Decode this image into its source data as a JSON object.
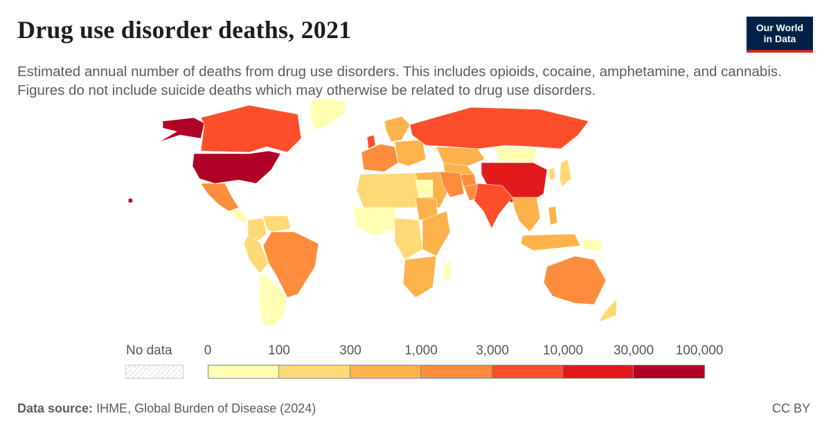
{
  "header": {
    "title": "Drug use disorder deaths, 2021",
    "subtitle": "Estimated annual number of deaths from drug use disorders. This includes opioids, cocaine, amphetamine, and cannabis. Figures do not include suicide deaths which may otherwise be related to drug use disorders."
  },
  "logo": {
    "line1": "Our World",
    "line2": "in Data",
    "bg_color": "#002147",
    "accent_color": "#ce261e"
  },
  "legend": {
    "no_data_label": "No data",
    "ticks": [
      "0",
      "100",
      "300",
      "1,000",
      "3,000",
      "10,000",
      "30,000",
      "100,000"
    ],
    "colors": [
      "#ffffb2",
      "#fed976",
      "#feb24c",
      "#fd8d3c",
      "#fc4e2a",
      "#e31a1c",
      "#b10026"
    ]
  },
  "footer": {
    "source_label": "Data source:",
    "source_text": "IHME, Global Burden of Disease (2024)",
    "license": "CC BY"
  },
  "map_data": {
    "year": "2021",
    "regions": [
      {
        "name": "United States",
        "bin": 6
      },
      {
        "name": "Alaska",
        "bin": 6
      },
      {
        "name": "Canada",
        "bin": 4
      },
      {
        "name": "Greenland",
        "bin": 0
      },
      {
        "name": "Mexico",
        "bin": 3
      },
      {
        "name": "Central America",
        "bin": 0
      },
      {
        "name": "Brazil",
        "bin": 3
      },
      {
        "name": "Colombia",
        "bin": 1
      },
      {
        "name": "Venezuela",
        "bin": 1
      },
      {
        "name": "Peru",
        "bin": 1
      },
      {
        "name": "Argentina",
        "bin": 0
      },
      {
        "name": "Chile",
        "bin": 0
      },
      {
        "name": "United Kingdom",
        "bin": 4
      },
      {
        "name": "Scandinavia",
        "bin": 2
      },
      {
        "name": "Western Europe",
        "bin": 3
      },
      {
        "name": "Eastern Europe",
        "bin": 2
      },
      {
        "name": "Russia",
        "bin": 4
      },
      {
        "name": "Kazakhstan",
        "bin": 2
      },
      {
        "name": "Central Asia",
        "bin": 2
      },
      {
        "name": "Mongolia",
        "bin": 0
      },
      {
        "name": "China",
        "bin": 5
      },
      {
        "name": "Iran",
        "bin": 3
      },
      {
        "name": "Middle East",
        "bin": 2
      },
      {
        "name": "Afghanistan",
        "bin": 3
      },
      {
        "name": "Pakistan",
        "bin": 3
      },
      {
        "name": "India",
        "bin": 4
      },
      {
        "name": "Southeast Asia",
        "bin": 2
      },
      {
        "name": "Korea",
        "bin": 1
      },
      {
        "name": "Japan",
        "bin": 1
      },
      {
        "name": "Indonesia",
        "bin": 2
      },
      {
        "name": "Papua New Guinea",
        "bin": 0
      },
      {
        "name": "Philippines",
        "bin": 2
      },
      {
        "name": "North Africa",
        "bin": 1
      },
      {
        "name": "Egypt",
        "bin": 0
      },
      {
        "name": "Sudan",
        "bin": 2
      },
      {
        "name": "West Africa",
        "bin": 0
      },
      {
        "name": "Central Africa",
        "bin": 1
      },
      {
        "name": "East Africa",
        "bin": 2
      },
      {
        "name": "Southern Africa",
        "bin": 2
      },
      {
        "name": "Madagascar",
        "bin": 0
      },
      {
        "name": "Australia",
        "bin": 3
      },
      {
        "name": "New Zealand",
        "bin": 1
      },
      {
        "name": "Hawaii",
        "bin": 6
      }
    ]
  }
}
